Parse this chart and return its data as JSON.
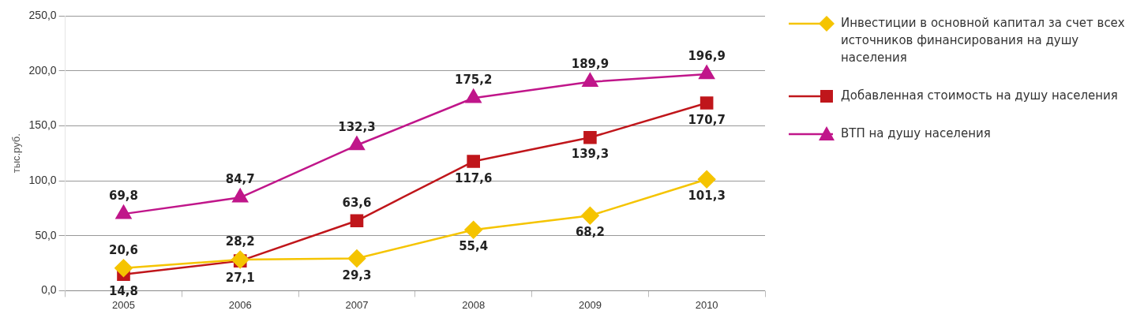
{
  "chart_data": {
    "type": "line",
    "ylabel": "тыс.руб.",
    "categories": [
      "2005",
      "2006",
      "2007",
      "2008",
      "2009",
      "2010"
    ],
    "ylim": [
      0,
      250
    ],
    "yticks": [
      {
        "value": 0,
        "label": "0,0"
      },
      {
        "value": 50,
        "label": "50,0"
      },
      {
        "value": 100,
        "label": "100,0"
      },
      {
        "value": 150,
        "label": "150,0"
      },
      {
        "value": 200,
        "label": "200,0"
      },
      {
        "value": 250,
        "label": "250,0"
      }
    ],
    "grid": "y",
    "legend": "right",
    "line_style": "solid",
    "series": [
      {
        "name": "Инвестиции в основной капитал за счет всех источников финансирования на душу населения",
        "color": "#f5c400",
        "marker": "diamond",
        "values": [
          20.6,
          28.2,
          29.3,
          55.4,
          68.2,
          101.3
        ],
        "value_labels": [
          "20,6",
          "28,2",
          "29,3",
          "55,4",
          "68,2",
          "101,3"
        ]
      },
      {
        "name": "Добавленная стоимость на душу населения",
        "color": "#c0161b",
        "marker": "square",
        "values": [
          14.8,
          27.1,
          63.6,
          117.6,
          139.3,
          170.7
        ],
        "value_labels": [
          "14,8",
          "27,1",
          "63,6",
          "117,6",
          "139,3",
          "170,7"
        ]
      },
      {
        "name": "ВТП на душу населения",
        "color": "#c0168a",
        "marker": "triangle",
        "values": [
          69.8,
          84.7,
          132.3,
          175.2,
          189.9,
          196.9
        ],
        "value_labels": [
          "69,8",
          "84,7",
          "132,3",
          "175,2",
          "189,9",
          "196,9"
        ]
      }
    ]
  }
}
